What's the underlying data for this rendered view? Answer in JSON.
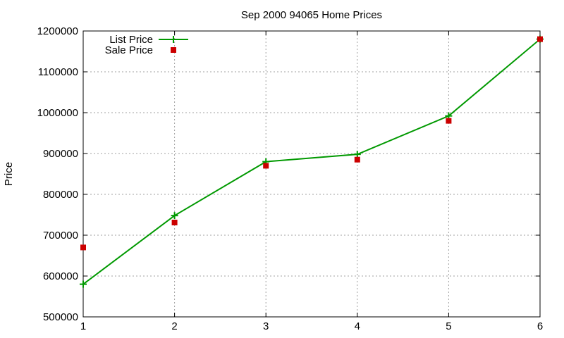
{
  "chart_data": {
    "type": "line",
    "title": "Sep 2000 94065 Home Prices",
    "xlabel": "",
    "ylabel": "Price",
    "xlim": [
      1,
      6
    ],
    "ylim": [
      500000,
      1200000
    ],
    "xticks": [
      "1",
      "2",
      "3",
      "4",
      "5",
      "6"
    ],
    "yticks": [
      "500000",
      "600000",
      "700000",
      "800000",
      "900000",
      "1000000",
      "1100000",
      "1200000"
    ],
    "grid": true,
    "legend_position": "top-left",
    "x": [
      1,
      2,
      3,
      4,
      5,
      6
    ],
    "series": [
      {
        "name": "List Price",
        "style": "line-points",
        "color": "#009900",
        "values": [
          580000,
          748000,
          880000,
          898000,
          992000,
          1180000
        ]
      },
      {
        "name": "Sale Price",
        "style": "points",
        "color": "#cc0000",
        "values": [
          670000,
          731000,
          870000,
          885000,
          980000,
          1180000
        ]
      }
    ]
  }
}
